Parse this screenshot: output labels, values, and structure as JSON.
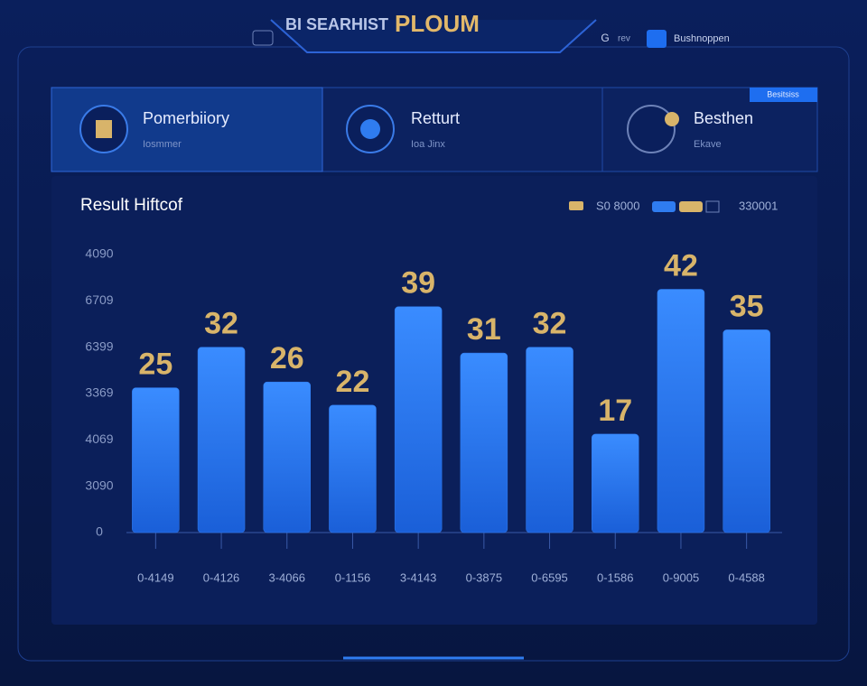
{
  "header": {
    "title_prefix": "BI SEARHIST",
    "title": "PLOUM",
    "left_icon": "G",
    "left_label": "rev",
    "user": "Bushnoppen"
  },
  "cards": [
    {
      "title": "Pomerbiiory",
      "subtitle": "Iosmmer"
    },
    {
      "title": "Retturt",
      "subtitle": "Ioa Jinx"
    },
    {
      "title": "Besthen",
      "subtitle": "Ekave"
    }
  ],
  "card_badge": "Besitsiss",
  "chart_data": {
    "type": "bar",
    "title": "Result Hiftcof",
    "legend_labels": [
      "S0 8000",
      "330001"
    ],
    "categories": [
      "0-4149",
      "0-4126",
      "3-4066",
      "0-1156",
      "3-4143",
      "0-3875",
      "0-6595",
      "0-1586",
      "0-9005",
      "0-4588"
    ],
    "values": [
      25,
      32,
      26,
      22,
      39,
      31,
      32,
      17,
      42,
      35
    ],
    "color": "#2f7cf0",
    "label_color": "#d8b46a",
    "ylim": [
      0,
      48
    ],
    "yticks": [
      0,
      {
        "value": 8,
        "label": "3090"
      },
      {
        "value": 16,
        "label": "4069"
      },
      {
        "value": 24,
        "label": "3369"
      },
      {
        "value": 32,
        "label": "6399"
      },
      {
        "value": 40,
        "label": "6709"
      },
      {
        "value": 48,
        "label": "4090"
      }
    ],
    "grid": false
  }
}
